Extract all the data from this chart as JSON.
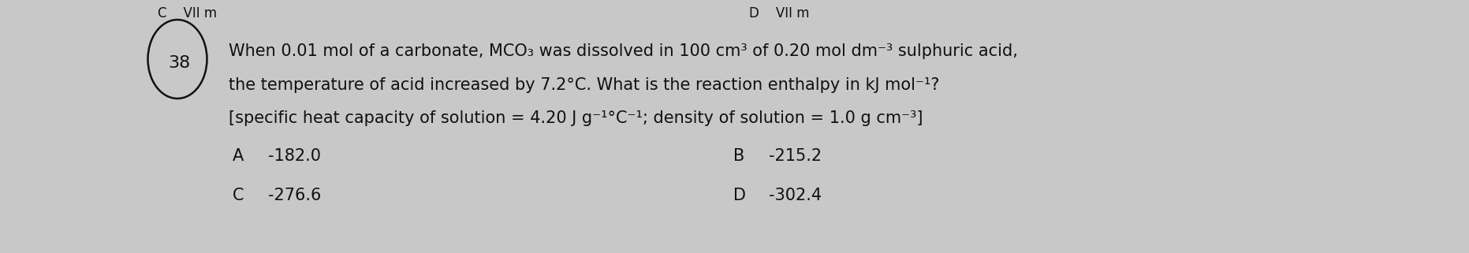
{
  "background_color": "#c8c8c8",
  "question_number": "38",
  "line1": "When 0.01 mol of a carbonate, MCO₃ was dissolved in 100 cm³ of 0.20 mol dm⁻³ sulphuric acid,",
  "line2": "the temperature of acid increased by 7.2°C. What is the reaction enthalpy in kJ mol⁻¹?",
  "line3": "[specific heat capacity of solution = 4.20 J g⁻¹°C⁻¹; density of solution = 1.0 g cm⁻³]",
  "option_A_label": "A",
  "option_A_value": "-182.0",
  "option_B_label": "B",
  "option_B_value": "-215.2",
  "option_C_label": "C",
  "option_C_value": "-276.6",
  "option_D_label": "D",
  "option_D_value": "-302.4",
  "font_size_main": 15,
  "text_color": "#111111",
  "circle_color": "#111111",
  "top_text_left": "C",
  "top_text_right": "D"
}
